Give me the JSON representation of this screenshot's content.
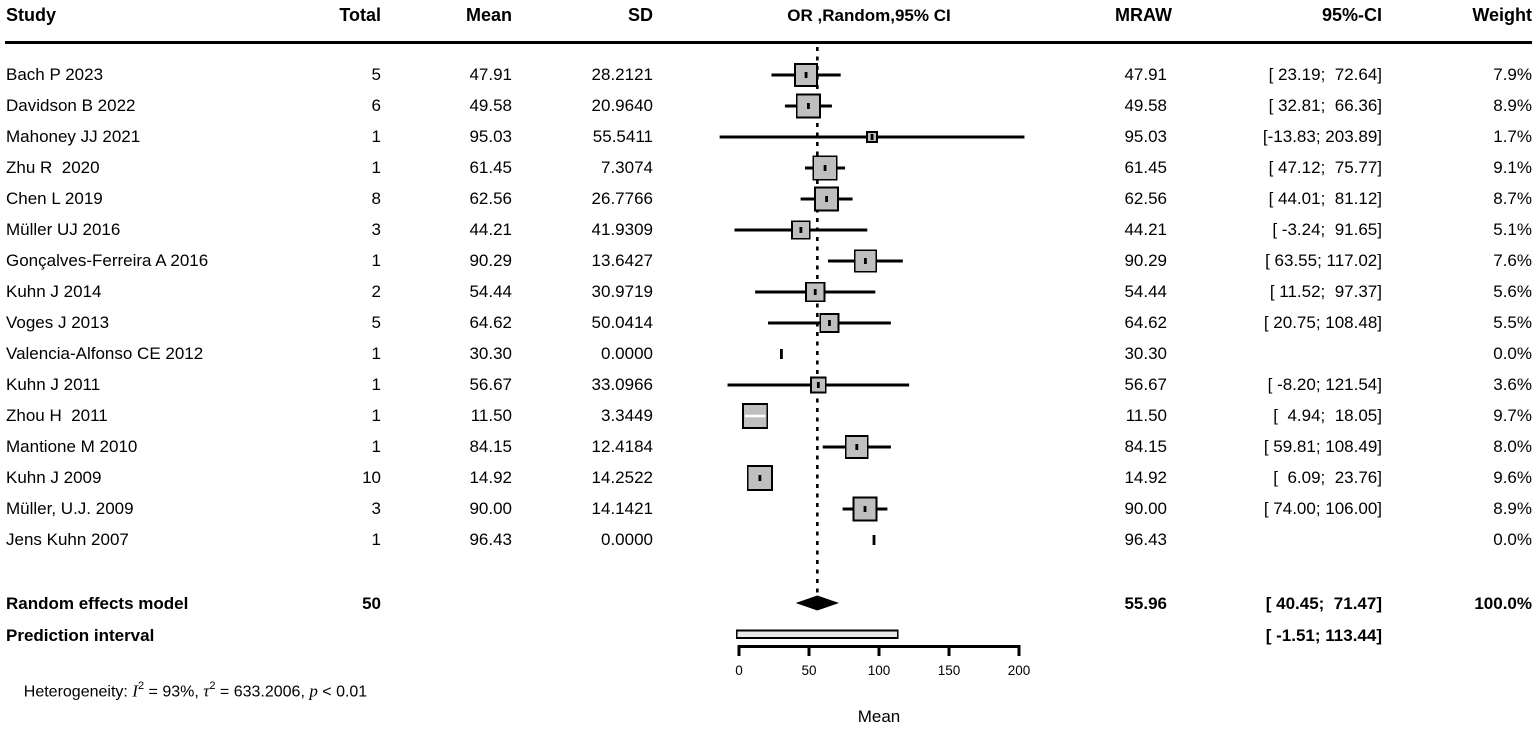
{
  "header": {
    "study": "Study",
    "total": "Total",
    "mean": "Mean",
    "sd": "SD",
    "plot": "OR ,Random,95% CI",
    "mraw": "MRAW",
    "ci": "95%-CI",
    "weight": "Weight"
  },
  "chart_data": {
    "type": "forest",
    "title": "",
    "xlabel": "Mean",
    "axis": {
      "min": 0,
      "max": 200,
      "ticks": [
        "0",
        "50",
        "100",
        "150",
        "200"
      ],
      "tick_values": [
        0,
        50,
        100,
        150,
        200
      ]
    },
    "overall_estimate": 55.96,
    "colors": {
      "box_fill": "#bfbfbf",
      "line": "#000000",
      "prediction_fill": "#e9e9e9"
    },
    "studies": [
      {
        "study": "Bach P 2023",
        "total": "5",
        "mean": "47.91",
        "sd": "28.2121",
        "mraw": "47.91",
        "ci": "[ 23.19;  72.64]",
        "weight": "7.9%",
        "mean_v": 47.91,
        "lo": 23.19,
        "hi": 72.64,
        "w": 7.9
      },
      {
        "study": "Davidson B 2022",
        "total": "6",
        "mean": "49.58",
        "sd": "20.9640",
        "mraw": "49.58",
        "ci": "[ 32.81;  66.36]",
        "weight": "8.9%",
        "mean_v": 49.58,
        "lo": 32.81,
        "hi": 66.36,
        "w": 8.9
      },
      {
        "study": "Mahoney JJ 2021",
        "total": "1",
        "mean": "95.03",
        "sd": "55.5411",
        "mraw": "95.03",
        "ci": "[-13.83; 203.89]",
        "weight": "1.7%",
        "mean_v": 95.03,
        "lo": -13.83,
        "hi": 203.89,
        "w": 1.7
      },
      {
        "study": "Zhu R  2020",
        "total": "1",
        "mean": "61.45",
        "sd": "7.3074",
        "mraw": "61.45",
        "ci": "[ 47.12;  75.77]",
        "weight": "9.1%",
        "mean_v": 61.45,
        "lo": 47.12,
        "hi": 75.77,
        "w": 9.1
      },
      {
        "study": "Chen L 2019",
        "total": "8",
        "mean": "62.56",
        "sd": "26.7766",
        "mraw": "62.56",
        "ci": "[ 44.01;  81.12]",
        "weight": "8.7%",
        "mean_v": 62.56,
        "lo": 44.01,
        "hi": 81.12,
        "w": 8.7
      },
      {
        "study": "Müller UJ 2016",
        "total": "3",
        "mean": "44.21",
        "sd": "41.9309",
        "mraw": "44.21",
        "ci": "[ -3.24;  91.65]",
        "weight": "5.1%",
        "mean_v": 44.21,
        "lo": -3.24,
        "hi": 91.65,
        "w": 5.1
      },
      {
        "study": "Gonçalves-Ferreira A 2016",
        "total": "1",
        "mean": "90.29",
        "sd": "13.6427",
        "mraw": "90.29",
        "ci": "[ 63.55; 117.02]",
        "weight": "7.6%",
        "mean_v": 90.29,
        "lo": 63.55,
        "hi": 117.02,
        "w": 7.6
      },
      {
        "study": "Kuhn J 2014",
        "total": "2",
        "mean": "54.44",
        "sd": "30.9719",
        "mraw": "54.44",
        "ci": "[ 11.52;  97.37]",
        "weight": "5.6%",
        "mean_v": 54.44,
        "lo": 11.52,
        "hi": 97.37,
        "w": 5.6
      },
      {
        "study": "Voges J 2013",
        "total": "5",
        "mean": "64.62",
        "sd": "50.0414",
        "mraw": "64.62",
        "ci": "[ 20.75; 108.48]",
        "weight": "5.5%",
        "mean_v": 64.62,
        "lo": 20.75,
        "hi": 108.48,
        "w": 5.5
      },
      {
        "study": "Valencia-Alfonso CE 2012",
        "total": "1",
        "mean": "30.30",
        "sd": "0.0000",
        "mraw": "30.30",
        "ci": "",
        "weight": "0.0%",
        "mean_v": 30.3,
        "lo": null,
        "hi": null,
        "w": 0.0
      },
      {
        "study": "Kuhn J 2011",
        "total": "1",
        "mean": "56.67",
        "sd": "33.0966",
        "mraw": "56.67",
        "ci": "[ -8.20; 121.54]",
        "weight": "3.6%",
        "mean_v": 56.67,
        "lo": -8.2,
        "hi": 121.54,
        "w": 3.6
      },
      {
        "study": "Zhou H  2011",
        "total": "1",
        "mean": "11.50",
        "sd": "3.3449",
        "mraw": "11.50",
        "ci": "[  4.94;  18.05]",
        "weight": "9.7%",
        "mean_v": 11.5,
        "lo": 4.94,
        "hi": 18.05,
        "w": 9.7
      },
      {
        "study": "Mantione M 2010",
        "total": "1",
        "mean": "84.15",
        "sd": "12.4184",
        "mraw": "84.15",
        "ci": "[ 59.81; 108.49]",
        "weight": "8.0%",
        "mean_v": 84.15,
        "lo": 59.81,
        "hi": 108.49,
        "w": 8.0
      },
      {
        "study": "Kuhn J 2009",
        "total": "10",
        "mean": "14.92",
        "sd": "14.2522",
        "mraw": "14.92",
        "ci": "[  6.09;  23.76]",
        "weight": "9.6%",
        "mean_v": 14.92,
        "lo": 6.09,
        "hi": 23.76,
        "w": 9.6
      },
      {
        "study": "Müller, U.J. 2009",
        "total": "3",
        "mean": "90.00",
        "sd": "14.1421",
        "mraw": "90.00",
        "ci": "[ 74.00; 106.00]",
        "weight": "8.9%",
        "mean_v": 90.0,
        "lo": 74.0,
        "hi": 106.0,
        "w": 8.9
      },
      {
        "study": "Jens Kuhn 2007",
        "total": "1",
        "mean": "96.43",
        "sd": "0.0000",
        "mraw": "96.43",
        "ci": "",
        "weight": "0.0%",
        "mean_v": 96.43,
        "lo": null,
        "hi": null,
        "w": 0.0
      }
    ],
    "summary": {
      "label": "Random effects model",
      "total": "50",
      "mraw": "55.96",
      "ci": "[ 40.45;  71.47]",
      "weight": "100.0%",
      "estimate": 55.96,
      "lo": 40.45,
      "hi": 71.47
    },
    "prediction": {
      "label": "Prediction interval",
      "ci": "[ -1.51; 113.44]",
      "lo": -1.51,
      "hi": 113.44
    },
    "heterogeneity": {
      "prefix": "Heterogeneity: ",
      "i_sym": "I",
      "i_sup": "2",
      "i_val": " = 93%, ",
      "tau_sym": "τ",
      "tau_sup": "2",
      "tau_val": " = 633.2006, ",
      "p_sym": "p",
      "p_val": " < 0.01"
    }
  }
}
